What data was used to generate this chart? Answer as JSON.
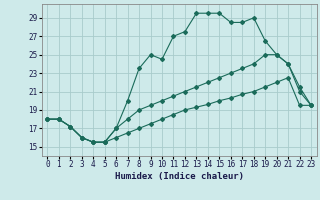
{
  "xlabel": "Humidex (Indice chaleur)",
  "background_color": "#ceeaea",
  "grid_color": "#a8cccc",
  "line_color": "#1a6b5a",
  "xlim": [
    -0.5,
    23.5
  ],
  "ylim": [
    14.0,
    30.5
  ],
  "xticks": [
    0,
    1,
    2,
    3,
    4,
    5,
    6,
    7,
    8,
    9,
    10,
    11,
    12,
    13,
    14,
    15,
    16,
    17,
    18,
    19,
    20,
    21,
    22,
    23
  ],
  "yticks": [
    15,
    17,
    19,
    21,
    23,
    25,
    27,
    29
  ],
  "line1_y": [
    18.0,
    18.0,
    17.2,
    16.0,
    15.5,
    15.5,
    17.0,
    20.0,
    23.5,
    25.0,
    24.5,
    27.0,
    27.5,
    29.5,
    29.5,
    29.5,
    28.5,
    28.5,
    29.0,
    26.5,
    25.0,
    24.0,
    21.0,
    19.5
  ],
  "line2_y": [
    18.0,
    18.0,
    17.2,
    16.0,
    15.5,
    15.5,
    17.0,
    18.0,
    19.0,
    19.5,
    20.0,
    20.5,
    21.0,
    21.5,
    22.0,
    22.5,
    23.0,
    23.5,
    24.0,
    25.0,
    25.0,
    24.0,
    21.5,
    19.5
  ],
  "line3_y": [
    18.0,
    18.0,
    17.2,
    16.0,
    15.5,
    15.5,
    16.0,
    16.5,
    17.0,
    17.5,
    18.0,
    18.5,
    19.0,
    19.3,
    19.6,
    20.0,
    20.3,
    20.7,
    21.0,
    21.5,
    22.0,
    22.5,
    19.5,
    19.5
  ]
}
